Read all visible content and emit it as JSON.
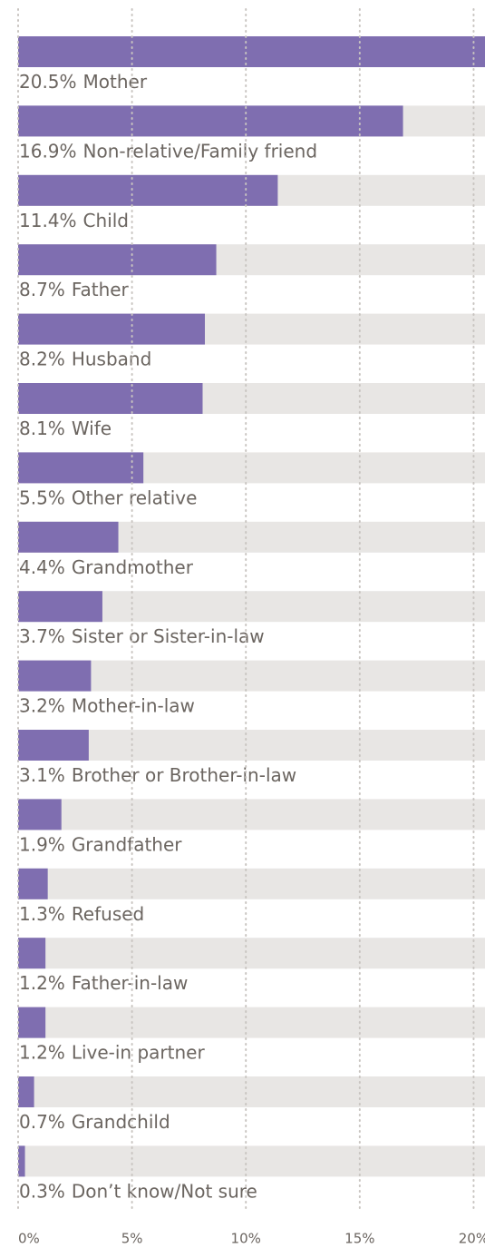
{
  "chart_data": {
    "type": "bar",
    "orientation": "horizontal",
    "categories": [
      "Mother",
      "Non-relative/Family friend",
      "Child",
      "Father",
      "Husband",
      "Wife",
      "Other relative",
      "Grandmother",
      "Sister or Sister-in-law",
      "Mother-in-law",
      "Brother or Brother-in-law",
      "Grandfather",
      "Refused",
      "Father-in-law",
      "Live-in partner",
      "Grandchild",
      "Don’t know/Not sure"
    ],
    "values": [
      20.5,
      16.9,
      11.4,
      8.7,
      8.2,
      8.1,
      5.5,
      4.4,
      3.7,
      3.2,
      3.1,
      1.9,
      1.3,
      1.2,
      1.2,
      0.7,
      0.3
    ],
    "value_labels": [
      "20.5%",
      "16.9%",
      "11.4%",
      "8.7%",
      "8.2%",
      "8.1%",
      "5.5%",
      "4.4%",
      "3.7%",
      "3.2%",
      "3.1%",
      "1.9%",
      "1.3%",
      "1.2%",
      "1.2%",
      "0.7%",
      "0.3%"
    ],
    "color": "#7f6eb0",
    "track_color": "#e8e6e4",
    "xlim": [
      0,
      20.5
    ],
    "xticks": [
      {
        "value": 0,
        "label": "0%"
      },
      {
        "value": 5,
        "label": "5%"
      },
      {
        "value": 10,
        "label": "10%"
      },
      {
        "value": 15,
        "label": "15%"
      },
      {
        "value": 20,
        "label": "20%"
      }
    ],
    "grid": true
  }
}
